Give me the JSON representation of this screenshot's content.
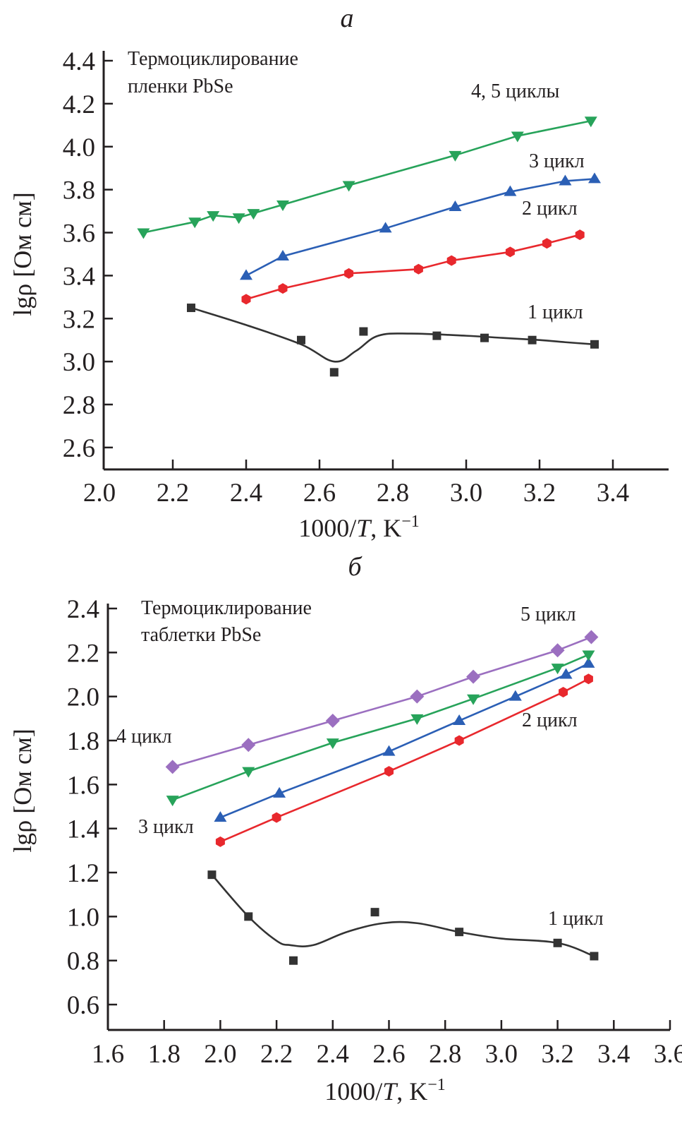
{
  "chart_data": [
    {
      "type": "line",
      "panel": "a",
      "title": "Термоциклирование пленки PbSe",
      "title_lines": [
        "Термоциклирование",
        "пленки PbSe"
      ],
      "xlabel": "1000/T, K⁻¹",
      "xlabel_parts": {
        "prefix": "1000/",
        "italic": "T",
        "suffix": ", K",
        "sup": "−1"
      },
      "ylabel": "lgρ [Ом см]",
      "xlim": [
        2.0,
        3.55
      ],
      "ylim": [
        2.5,
        4.45
      ],
      "xticks": [
        2.0,
        2.2,
        2.4,
        2.6,
        2.8,
        3.0,
        3.2,
        3.4
      ],
      "xtick_labels": [
        "2.0",
        "2.2",
        "2.4",
        "2.6",
        "2.8",
        "3.0",
        "3.2",
        "3.4"
      ],
      "yticks": [
        2.6,
        2.8,
        3.0,
        3.2,
        3.4,
        3.6,
        3.8,
        4.0,
        4.2,
        4.4
      ],
      "ytick_labels": [
        "2.6",
        "2.8",
        "3.0",
        "3.2",
        "3.4",
        "3.6",
        "3.8",
        "4.0",
        "4.2",
        "4.4"
      ],
      "grid": false,
      "legend": "none (inline annotations)",
      "series": [
        {
          "name": "1 цикл",
          "label": "1 цикл",
          "color": "#333333",
          "marker": "square",
          "x": [
            2.25,
            2.55,
            2.64,
            2.72,
            2.92,
            3.05,
            3.18,
            3.35
          ],
          "y": [
            3.25,
            3.1,
            2.95,
            3.14,
            3.12,
            3.11,
            3.1,
            3.08
          ],
          "curve_x": [
            2.25,
            2.4,
            2.55,
            2.64,
            2.7,
            2.76,
            2.85,
            3.0,
            3.1,
            3.2,
            3.27,
            3.35
          ],
          "curve_y": [
            3.25,
            3.17,
            3.08,
            3.0,
            3.05,
            3.12,
            3.13,
            3.12,
            3.11,
            3.1,
            3.09,
            3.08
          ]
        },
        {
          "name": "2 цикл",
          "label": "2 цикл",
          "color": "#e8282d",
          "marker": "circle",
          "x": [
            2.4,
            2.5,
            2.68,
            2.87,
            2.96,
            3.12,
            3.22,
            3.31
          ],
          "y": [
            3.29,
            3.34,
            3.41,
            3.43,
            3.47,
            3.51,
            3.55,
            3.59
          ]
        },
        {
          "name": "3 цикл",
          "label": "3 цикл",
          "color": "#2b5fb5",
          "marker": "triangle-up",
          "x": [
            2.4,
            2.5,
            2.78,
            2.97,
            3.12,
            3.27,
            3.35
          ],
          "y": [
            3.4,
            3.49,
            3.62,
            3.72,
            3.79,
            3.84,
            3.85
          ]
        },
        {
          "name": "4, 5 циклы",
          "label": "4, 5 циклы",
          "color": "#27a35a",
          "marker": "triangle-down",
          "x": [
            2.12,
            2.26,
            2.31,
            2.38,
            2.42,
            2.5,
            2.68,
            2.97,
            3.14,
            3.34
          ],
          "y": [
            3.6,
            3.65,
            3.68,
            3.67,
            3.69,
            3.73,
            3.82,
            3.96,
            4.05,
            4.12
          ]
        }
      ]
    },
    {
      "type": "line",
      "panel": "б",
      "title": "Термоциклирование таблетки PbSe",
      "title_lines": [
        "Термоциклирование",
        "таблетки PbSe"
      ],
      "xlabel": "1000/T, K⁻¹",
      "xlabel_parts": {
        "prefix": "1000/",
        "italic": "T",
        "suffix": ", K",
        "sup": "−1"
      },
      "ylabel": "lgρ [Ом см]",
      "xlim": [
        1.6,
        3.6
      ],
      "ylim": [
        0.48,
        2.4
      ],
      "xticks": [
        1.6,
        1.8,
        2.0,
        2.2,
        2.4,
        2.6,
        2.8,
        3.0,
        3.2,
        3.4,
        3.6
      ],
      "xtick_labels": [
        "1.6",
        "1.8",
        "2.0",
        "2.2",
        "2.4",
        "2.6",
        "2.8",
        "3.0",
        "3.2",
        "3.4",
        "3.6"
      ],
      "yticks": [
        0.6,
        0.8,
        1.0,
        1.2,
        1.4,
        1.6,
        1.8,
        2.0,
        2.2,
        2.4
      ],
      "ytick_labels": [
        "0.6",
        "0.8",
        "1.0",
        "1.2",
        "1.4",
        "1.6",
        "1.8",
        "2.0",
        "2.2",
        "2.4"
      ],
      "grid": false,
      "legend": "none (inline annotations)",
      "series": [
        {
          "name": "1 цикл",
          "label": "1 цикл",
          "color": "#333333",
          "marker": "square",
          "x": [
            1.97,
            2.1,
            2.26,
            2.55,
            2.85,
            3.2,
            3.33
          ],
          "y": [
            1.19,
            1.0,
            0.8,
            1.02,
            0.93,
            0.88,
            0.82
          ],
          "curve_x": [
            1.97,
            2.1,
            2.2,
            2.25,
            2.33,
            2.45,
            2.58,
            2.7,
            2.85,
            3.0,
            3.2,
            3.33
          ],
          "curve_y": [
            1.19,
            1.0,
            0.89,
            0.87,
            0.87,
            0.93,
            0.97,
            0.97,
            0.93,
            0.9,
            0.88,
            0.82
          ]
        },
        {
          "name": "2 цикл",
          "label": "2 цикл",
          "color": "#e8282d",
          "marker": "circle",
          "x": [
            2.0,
            2.2,
            2.6,
            2.85,
            3.22,
            3.31
          ],
          "y": [
            1.34,
            1.45,
            1.66,
            1.8,
            2.02,
            2.08
          ]
        },
        {
          "name": "3 цикл",
          "label": "3 цикл",
          "color": "#2b5fb5",
          "marker": "triangle-up",
          "x": [
            2.0,
            2.21,
            2.6,
            2.85,
            3.05,
            3.23,
            3.31
          ],
          "y": [
            1.45,
            1.56,
            1.75,
            1.89,
            2.0,
            2.1,
            2.15
          ]
        },
        {
          "name": "4 цикл",
          "label": "4 цикл",
          "color": "#27a35a",
          "marker": "triangle-down",
          "x": [
            1.83,
            2.1,
            2.4,
            2.7,
            2.9,
            3.2,
            3.31
          ],
          "y": [
            1.53,
            1.66,
            1.79,
            1.9,
            1.99,
            2.13,
            2.19
          ]
        },
        {
          "name": "5 цикл",
          "label": "5 цикл",
          "color": "#9b6fc0",
          "marker": "diamond",
          "x": [
            1.83,
            2.1,
            2.4,
            2.7,
            2.9,
            3.2,
            3.32
          ],
          "y": [
            1.68,
            1.78,
            1.89,
            2.0,
            2.09,
            2.21,
            2.27
          ]
        }
      ]
    }
  ]
}
